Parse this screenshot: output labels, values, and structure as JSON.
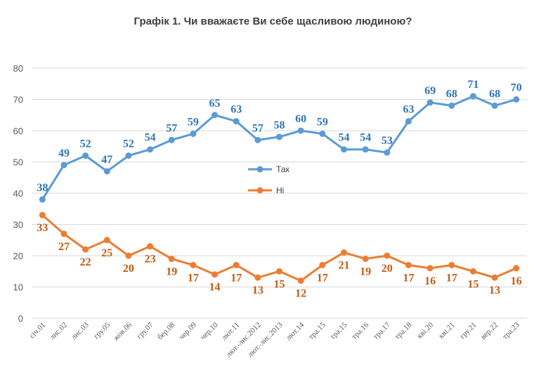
{
  "chart_data": {
    "type": "line",
    "title": "Графік 1. Чи вважаєте Ви себе щасливою людиною?",
    "xlabel": "",
    "ylabel": "",
    "ylim": [
      0,
      80
    ],
    "yticks": [
      0,
      10,
      20,
      30,
      40,
      50,
      60,
      70,
      80
    ],
    "grid": true,
    "legend_position": "center",
    "categories": [
      "січ.01",
      "лис.02",
      "лис.03",
      "гру.05",
      "жов.06",
      "гру.07",
      "бер.08",
      "чер.09",
      "чер.10",
      "лют.11",
      "лют.-лис.2012",
      "лют.-лис.2013",
      "лют.14",
      "тра.15",
      "тра.15",
      "тра.16",
      "тра.17",
      "тра.18",
      "кві.20",
      "кві.21",
      "гру.21",
      "вер.22",
      "тра.23"
    ],
    "series": [
      {
        "name": "Так",
        "color": "#5b9bd5",
        "label_color": "#2e75b6",
        "values": [
          38,
          49,
          52,
          47,
          52,
          54,
          57,
          59,
          65,
          63,
          57,
          58,
          60,
          59,
          54,
          54,
          53,
          63,
          69,
          68,
          71,
          68,
          70
        ],
        "labels": [
          "38",
          "49",
          "52",
          "47",
          "52",
          "54",
          "57",
          "59",
          "65",
          "63",
          "57",
          "58",
          "60",
          "59",
          "54",
          "54",
          "53",
          "63",
          "69",
          "68",
          "71",
          "68",
          "70"
        ]
      },
      {
        "name": "Ні",
        "color": "#ed7d31",
        "label_color": "#c55a11",
        "values": [
          33,
          27,
          22,
          25,
          20,
          23,
          19,
          17,
          14,
          17,
          13,
          15,
          12,
          17,
          21,
          19,
          20,
          17,
          16,
          17,
          15,
          13,
          16
        ],
        "labels": [
          "33",
          "27",
          "22",
          "25",
          "20",
          "23",
          "19",
          "17",
          "14",
          "17",
          "13",
          "15",
          "12",
          "17",
          "21",
          "19",
          "20",
          "17",
          "16",
          "17",
          "15",
          "13",
          "16"
        ]
      }
    ]
  }
}
